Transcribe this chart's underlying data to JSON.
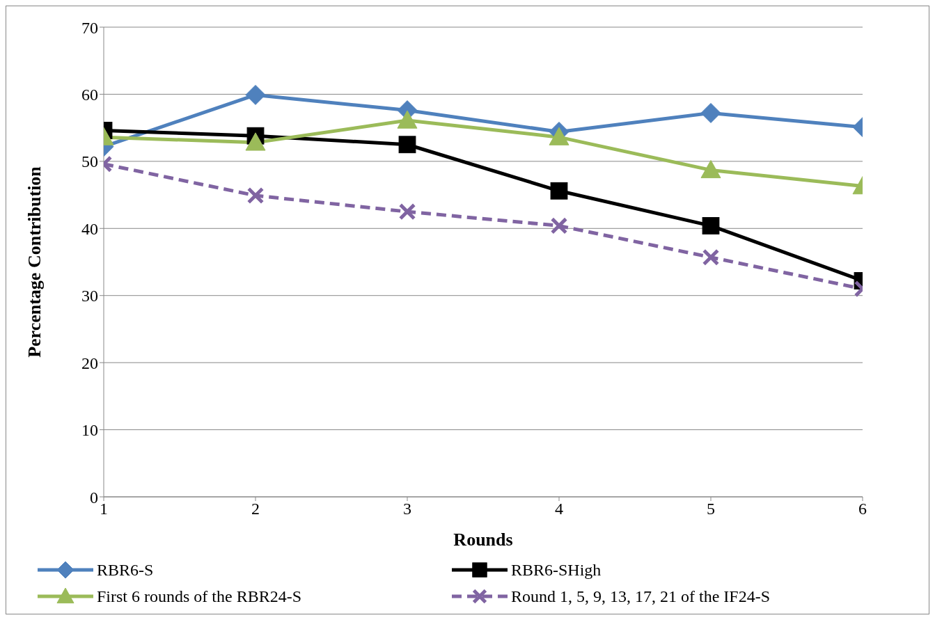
{
  "chart_data": {
    "type": "line",
    "xlabel": "Rounds",
    "ylabel": "Percentage Contribution",
    "x": [
      1,
      2,
      3,
      4,
      5,
      6
    ],
    "series": [
      {
        "name": "RBR6-S",
        "color": "#4f81bd",
        "marker": "diamond",
        "line_style": "solid",
        "values": [
          52.2,
          59.9,
          57.6,
          54.4,
          57.2,
          55.1
        ]
      },
      {
        "name": "RBR6-SHigh",
        "color": "#000000",
        "marker": "square",
        "line_style": "solid",
        "values": [
          54.6,
          53.8,
          52.5,
          45.6,
          40.4,
          32.2
        ]
      },
      {
        "name": "First 6 rounds of the RBR24-S",
        "color": "#9bbb59",
        "marker": "triangle",
        "line_style": "solid",
        "values": [
          53.6,
          52.8,
          56.1,
          53.6,
          48.7,
          46.3
        ]
      },
      {
        "name": "Round 1, 5, 9, 13, 17, 21 of the IF24-S",
        "color": "#8064a2",
        "marker": "cross",
        "line_style": "dashed",
        "values": [
          49.6,
          44.9,
          42.5,
          40.4,
          35.7,
          31.0
        ]
      }
    ],
    "xlim": [
      1,
      6
    ],
    "xticks": [
      1,
      2,
      3,
      4,
      5,
      6
    ],
    "ylim": [
      0,
      70
    ],
    "yticks": [
      0,
      10,
      20,
      30,
      40,
      50,
      60,
      70
    ],
    "grid": "y",
    "legend": "bottom"
  }
}
